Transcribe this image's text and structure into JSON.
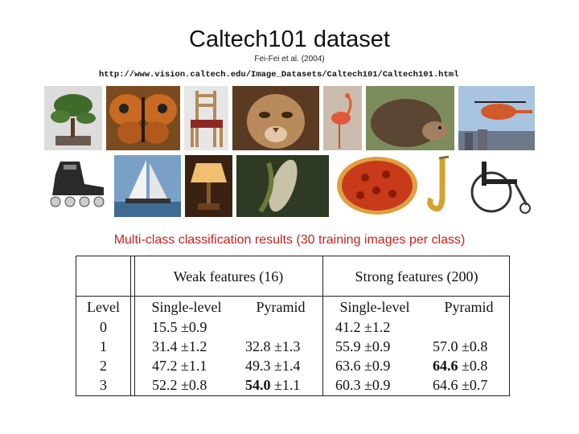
{
  "header": {
    "title": "Caltech101 dataset",
    "citation": "Fei-Fei et al. (2004)",
    "url": "http://www.vision.caltech.edu/Image_Datasets/Caltech101/Caltech101.html"
  },
  "images": [
    "bonsai",
    "butterfly",
    "chair",
    "cougar",
    "flamingo",
    "hedgehog",
    "helicopter",
    "inline-skate",
    "sailboat",
    "lamp",
    "corn",
    "pizza",
    "saxophone",
    "wheelchair"
  ],
  "results": {
    "heading": "Multi-class classification results (30 training images per class)",
    "group_headers": [
      "Weak features (16)",
      "Strong features (200)"
    ],
    "columns": [
      "Level",
      "Single-level",
      "Pyramid",
      "Single-level",
      "Pyramid"
    ],
    "rows": [
      {
        "level": "0",
        "weak_single": "15.5 ±0.9",
        "weak_pyramid": "",
        "strong_single": "41.2 ±1.2",
        "strong_pyramid": ""
      },
      {
        "level": "1",
        "weak_single": "31.4 ±1.2",
        "weak_pyramid": "32.8 ±1.3",
        "strong_single": "55.9 ±0.9",
        "strong_pyramid": "57.0 ±0.8"
      },
      {
        "level": "2",
        "weak_single": "47.2 ±1.1",
        "weak_pyramid": "49.3 ±1.4",
        "strong_single": "63.6 ±0.9",
        "strong_pyramid_bold": "64.6",
        "strong_pyramid_rest": " ±0.8"
      },
      {
        "level": "3",
        "weak_single": "52.2 ±0.8",
        "weak_pyramid_bold": "54.0",
        "weak_pyramid_rest": " ±1.1",
        "strong_single": "60.3 ±0.9",
        "strong_pyramid": "64.6 ±0.7"
      }
    ]
  }
}
